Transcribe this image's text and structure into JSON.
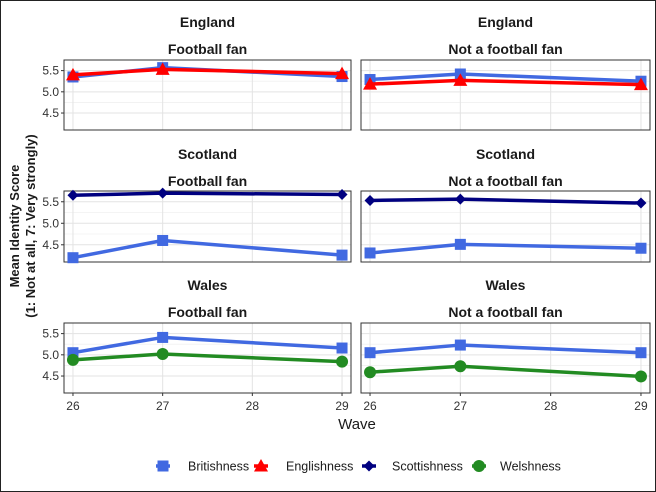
{
  "chart_data": {
    "type": "line",
    "xlabel": "Wave",
    "ylabel_line1": "Mean Identity Score",
    "ylabel_line2": "(1: Not at all, 7: Very strongly)",
    "x_ticks": [
      26,
      27,
      28,
      29
    ],
    "x_range": [
      25.9,
      29.1
    ],
    "grid": true,
    "legend_position": "bottom",
    "series_styles": [
      {
        "name": "Britishness",
        "color": "#4169E1",
        "marker": "square"
      },
      {
        "name": "Englishness",
        "color": "#FF0000",
        "marker": "triangle"
      },
      {
        "name": "Scottishness",
        "color": "#000080",
        "marker": "diamond"
      },
      {
        "name": "Welshness",
        "color": "#228B22",
        "marker": "circle"
      }
    ],
    "rows": [
      {
        "strip": "England",
        "y_ticks": [
          4.5,
          5.0,
          5.5
        ],
        "y_tick_labels": [
          "4.5",
          "5.0",
          "5.5"
        ],
        "ylim": [
          4.1,
          5.75
        ],
        "panels": [
          {
            "strip": "Football fan",
            "series": [
              {
                "name": "Britishness",
                "x": [
                  26,
                  27,
                  29
                ],
                "values": [
                  5.35,
                  5.57,
                  5.36
                ]
              },
              {
                "name": "Englishness",
                "x": [
                  26,
                  27,
                  29
                ],
                "values": [
                  5.4,
                  5.53,
                  5.43
                ]
              }
            ]
          },
          {
            "strip": "Not a football fan",
            "series": [
              {
                "name": "Britishness",
                "x": [
                  26,
                  27,
                  29
                ],
                "values": [
                  5.29,
                  5.42,
                  5.25
                ]
              },
              {
                "name": "Englishness",
                "x": [
                  26,
                  27,
                  29
                ],
                "values": [
                  5.18,
                  5.27,
                  5.17
                ]
              }
            ]
          }
        ]
      },
      {
        "strip": "Scotland",
        "y_ticks": [
          4.5,
          5.0,
          5.5
        ],
        "y_tick_labels": [
          "4.5",
          "5.0",
          "5.5"
        ],
        "ylim": [
          4.1,
          5.75
        ],
        "panels": [
          {
            "strip": "Football fan",
            "series": [
              {
                "name": "Britishness",
                "x": [
                  26,
                  27,
                  29
                ],
                "values": [
                  4.2,
                  4.6,
                  4.26
                ]
              },
              {
                "name": "Scottishness",
                "x": [
                  26,
                  27,
                  29
                ],
                "values": [
                  5.65,
                  5.7,
                  5.67
                ]
              }
            ]
          },
          {
            "strip": "Not a football fan",
            "series": [
              {
                "name": "Britishness",
                "x": [
                  26,
                  27,
                  29
                ],
                "values": [
                  4.31,
                  4.51,
                  4.42
                ]
              },
              {
                "name": "Scottishness",
                "x": [
                  26,
                  27,
                  29
                ],
                "values": [
                  5.53,
                  5.56,
                  5.47
                ]
              }
            ]
          }
        ]
      },
      {
        "strip": "Wales",
        "y_ticks": [
          4.5,
          5.0,
          5.5
        ],
        "y_tick_labels": [
          "4.5",
          "5.0",
          "5.5"
        ],
        "ylim": [
          4.1,
          5.75
        ],
        "panels": [
          {
            "strip": "Football fan",
            "series": [
              {
                "name": "Britishness",
                "x": [
                  26,
                  27,
                  29
                ],
                "values": [
                  5.05,
                  5.41,
                  5.16
                ]
              },
              {
                "name": "Welshness",
                "x": [
                  26,
                  27,
                  29
                ],
                "values": [
                  4.88,
                  5.02,
                  4.84
                ]
              }
            ]
          },
          {
            "strip": "Not a football fan",
            "series": [
              {
                "name": "Britishness",
                "x": [
                  26,
                  27,
                  29
                ],
                "values": [
                  5.05,
                  5.23,
                  5.05
                ]
              },
              {
                "name": "Welshness",
                "x": [
                  26,
                  27,
                  29
                ],
                "values": [
                  4.59,
                  4.73,
                  4.49
                ]
              }
            ]
          }
        ]
      }
    ]
  }
}
